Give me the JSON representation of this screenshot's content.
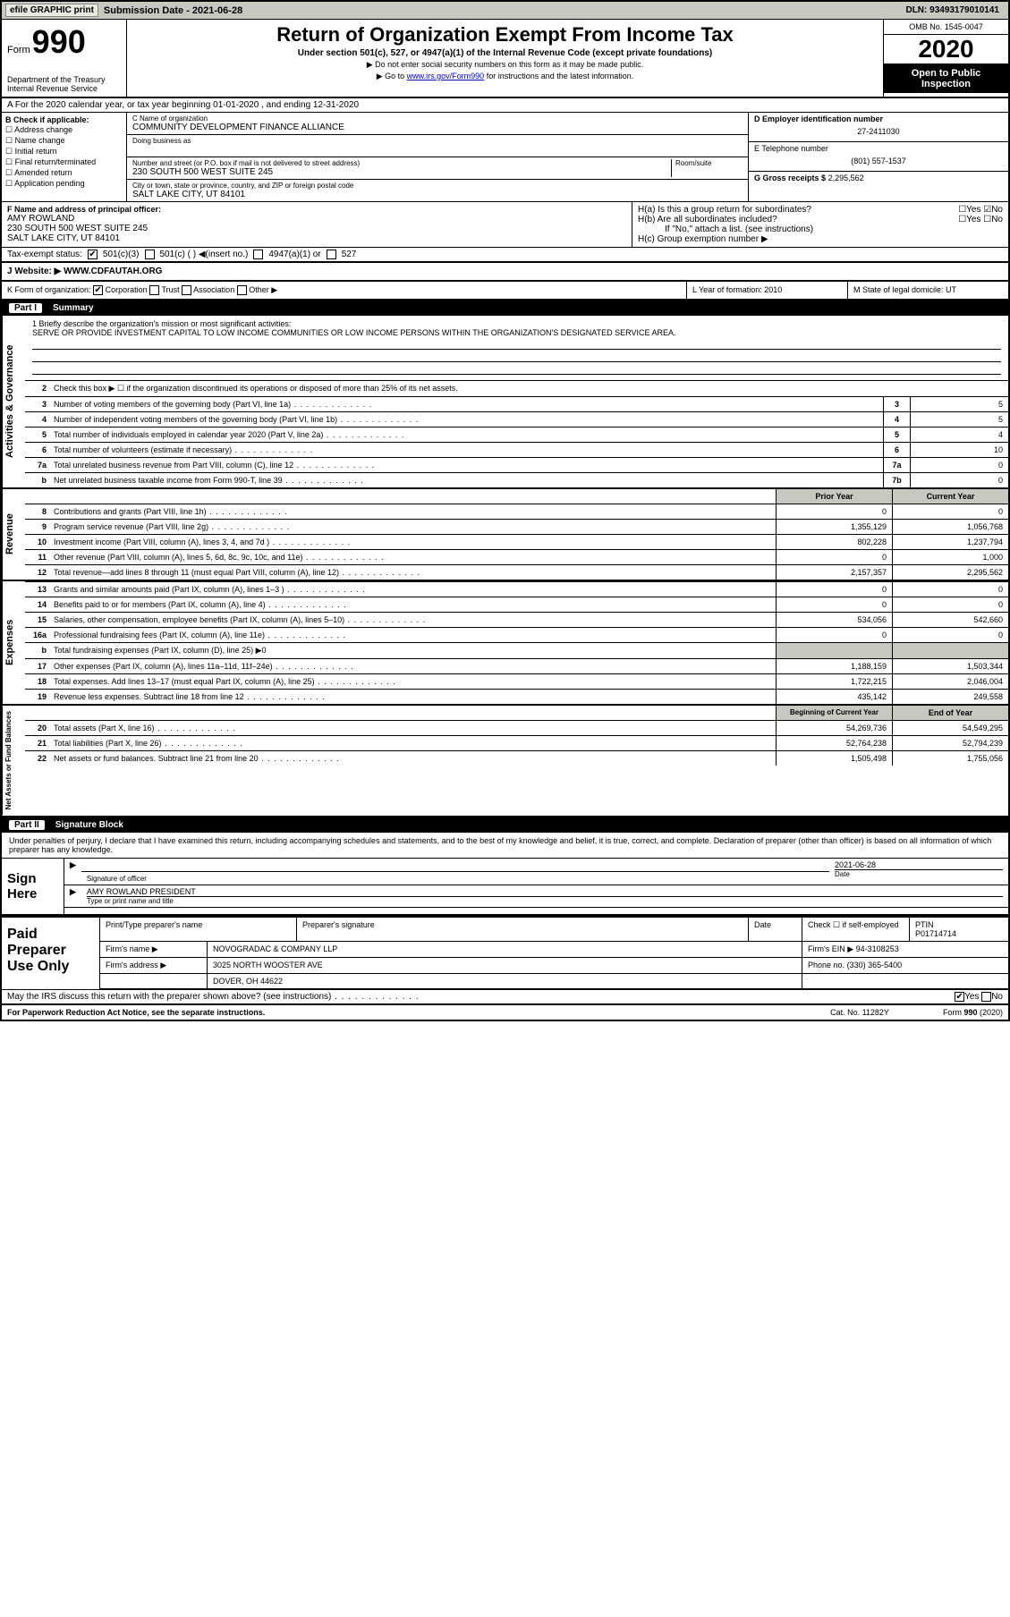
{
  "topbar": {
    "efile": "efile GRAPHIC print",
    "sub_label": "Submission Date - 2021-06-28",
    "dln": "DLN: 93493179010141"
  },
  "header": {
    "form_word": "Form",
    "form_num": "990",
    "dept": "Department of the Treasury\nInternal Revenue Service",
    "title": "Return of Organization Exempt From Income Tax",
    "subtitle": "Under section 501(c), 527, or 4947(a)(1) of the Internal Revenue Code (except private foundations)",
    "note1": "▶ Do not enter social security numbers on this form as it may be made public.",
    "note2_pre": "▶ Go to ",
    "note2_link": "www.irs.gov/Form990",
    "note2_post": " for instructions and the latest information.",
    "omb": "OMB No. 1545-0047",
    "year": "2020",
    "inspect": "Open to Public Inspection"
  },
  "rowA": "A For the 2020 calendar year, or tax year beginning 01-01-2020   , and ending 12-31-2020",
  "boxB": {
    "label": "B Check if applicable:",
    "opts": [
      "Address change",
      "Name change",
      "Initial return",
      "Final return/terminated",
      "Amended return",
      "Application pending"
    ]
  },
  "boxC": {
    "name_label": "C Name of organization",
    "name": "COMMUNITY DEVELOPMENT FINANCE ALLIANCE",
    "dba_label": "Doing business as",
    "addr_label": "Number and street (or P.O. box if mail is not delivered to street address)",
    "room_label": "Room/suite",
    "addr": "230 SOUTH 500 WEST SUITE 245",
    "city_label": "City or town, state or province, country, and ZIP or foreign postal code",
    "city": "SALT LAKE CITY, UT  84101"
  },
  "boxD": {
    "ein_label": "D Employer identification number",
    "ein": "27-2411030",
    "tel_label": "E Telephone number",
    "tel": "(801) 557-1537",
    "gross_label": "G Gross receipts $",
    "gross": "2,295,562"
  },
  "officer": {
    "label": "F Name and address of principal officer:",
    "name": "AMY ROWLAND",
    "addr1": "230 SOUTH 500 WEST SUITE 245",
    "addr2": "SALT LAKE CITY, UT  84101"
  },
  "boxH": {
    "a": "H(a)  Is this a group return for subordinates?",
    "b": "H(b)  Are all subordinates included?",
    "note": "If \"No,\" attach a list. (see instructions)",
    "c": "H(c)  Group exemption number ▶"
  },
  "tax_status": {
    "label": "Tax-exempt status:",
    "o1": "501(c)(3)",
    "o2": "501(c) (  ) ◀(insert no.)",
    "o3": "4947(a)(1) or",
    "o4": "527"
  },
  "website": {
    "label": "J   Website: ▶",
    "val": "WWW.CDFAUTAH.ORG"
  },
  "rowK": {
    "k": "K Form of organization:",
    "opts": [
      "Corporation",
      "Trust",
      "Association",
      "Other ▶"
    ],
    "l": "L Year of formation: 2010",
    "m": "M State of legal domicile: UT"
  },
  "part1": {
    "num": "Part I",
    "title": "Summary"
  },
  "mission": {
    "q": "1  Briefly describe the organization's mission or most significant activities:",
    "text": "SERVE OR PROVIDE INVESTMENT CAPITAL TO LOW INCOME COMMUNITIES OR LOW INCOME PERSONS WITHIN THE ORGANIZATION'S DESIGNATED SERVICE AREA."
  },
  "side": {
    "ag": "Activities & Governance",
    "rev": "Revenue",
    "exp": "Expenses",
    "net": "Net Assets or Fund Balances"
  },
  "lines_ag": [
    {
      "n": "2",
      "t": "Check this box ▶ ☐  if the organization discontinued its operations or disposed of more than 25% of its net assets."
    },
    {
      "n": "3",
      "t": "Number of voting members of the governing body (Part VI, line 1a)",
      "b": "3",
      "v": "5"
    },
    {
      "n": "4",
      "t": "Number of independent voting members of the governing body (Part VI, line 1b)",
      "b": "4",
      "v": "5"
    },
    {
      "n": "5",
      "t": "Total number of individuals employed in calendar year 2020 (Part V, line 2a)",
      "b": "5",
      "v": "4"
    },
    {
      "n": "6",
      "t": "Total number of volunteers (estimate if necessary)",
      "b": "6",
      "v": "10"
    },
    {
      "n": "7a",
      "t": "Total unrelated business revenue from Part VIII, column (C), line 12",
      "b": "7a",
      "v": "0"
    },
    {
      "n": "b",
      "t": "Net unrelated business taxable income from Form 990-T, line 39",
      "b": "7b",
      "v": "0"
    }
  ],
  "col_hdr": {
    "py": "Prior Year",
    "cy": "Current Year"
  },
  "lines_rev": [
    {
      "n": "8",
      "t": "Contributions and grants (Part VIII, line 1h)",
      "py": "0",
      "cy": "0"
    },
    {
      "n": "9",
      "t": "Program service revenue (Part VIII, line 2g)",
      "py": "1,355,129",
      "cy": "1,056,768"
    },
    {
      "n": "10",
      "t": "Investment income (Part VIII, column (A), lines 3, 4, and 7d )",
      "py": "802,228",
      "cy": "1,237,794"
    },
    {
      "n": "11",
      "t": "Other revenue (Part VIII, column (A), lines 5, 6d, 8c, 9c, 10c, and 11e)",
      "py": "0",
      "cy": "1,000"
    },
    {
      "n": "12",
      "t": "Total revenue—add lines 8 through 11 (must equal Part VIII, column (A), line 12)",
      "py": "2,157,357",
      "cy": "2,295,562"
    }
  ],
  "lines_exp": [
    {
      "n": "13",
      "t": "Grants and similar amounts paid (Part IX, column (A), lines 1–3 )",
      "py": "0",
      "cy": "0"
    },
    {
      "n": "14",
      "t": "Benefits paid to or for members (Part IX, column (A), line 4)",
      "py": "0",
      "cy": "0"
    },
    {
      "n": "15",
      "t": "Salaries, other compensation, employee benefits (Part IX, column (A), lines 5–10)",
      "py": "534,056",
      "cy": "542,660"
    },
    {
      "n": "16a",
      "t": "Professional fundraising fees (Part IX, column (A), line 11e)",
      "py": "0",
      "cy": "0"
    },
    {
      "n": "b",
      "t": "Total fundraising expenses (Part IX, column (D), line 25) ▶0",
      "shade": true
    },
    {
      "n": "17",
      "t": "Other expenses (Part IX, column (A), lines 11a–11d, 11f–24e)",
      "py": "1,188,159",
      "cy": "1,503,344"
    },
    {
      "n": "18",
      "t": "Total expenses. Add lines 13–17 (must equal Part IX, column (A), line 25)",
      "py": "1,722,215",
      "cy": "2,046,004"
    },
    {
      "n": "19",
      "t": "Revenue less expenses. Subtract line 18 from line 12",
      "py": "435,142",
      "cy": "249,558"
    }
  ],
  "col_hdr2": {
    "py": "Beginning of Current Year",
    "cy": "End of Year"
  },
  "lines_net": [
    {
      "n": "20",
      "t": "Total assets (Part X, line 16)",
      "py": "54,269,736",
      "cy": "54,549,295"
    },
    {
      "n": "21",
      "t": "Total liabilities (Part X, line 26)",
      "py": "52,764,238",
      "cy": "52,794,239"
    },
    {
      "n": "22",
      "t": "Net assets or fund balances. Subtract line 21 from line 20",
      "py": "1,505,498",
      "cy": "1,755,056"
    }
  ],
  "part2": {
    "num": "Part II",
    "title": "Signature Block"
  },
  "decl": "Under penalties of perjury, I declare that I have examined this return, including accompanying schedules and statements, and to the best of my knowledge and belief, it is true, correct, and complete. Declaration of preparer (other than officer) is based on all information of which preparer has any knowledge.",
  "sign": {
    "here": "Sign Here",
    "sig_label": "Signature of officer",
    "date_label": "Date",
    "date": "2021-06-28",
    "name": "AMY ROWLAND PRESIDENT",
    "name_label": "Type or print name and title"
  },
  "prep": {
    "title": "Paid Preparer Use Only",
    "h1": "Print/Type preparer's name",
    "h2": "Preparer's signature",
    "h3": "Date",
    "h4_pre": "Check ☐ if self-employed",
    "h5": "PTIN",
    "ptin": "P01714714",
    "firm_label": "Firm's name    ▶",
    "firm": "NOVOGRADAC & COMPANY LLP",
    "ein_label": "Firm's EIN ▶",
    "ein": "94-3108253",
    "addr_label": "Firm's address ▶",
    "addr1": "3025 NORTH WOOSTER AVE",
    "addr2": "DOVER, OH  44622",
    "phone_label": "Phone no.",
    "phone": "(330) 365-5400"
  },
  "discuss": "May the IRS discuss this return with the preparer shown above? (see instructions)",
  "footer": {
    "left": "For Paperwork Reduction Act Notice, see the separate instructions.",
    "mid": "Cat. No. 11282Y",
    "right": "Form 990 (2020)"
  }
}
